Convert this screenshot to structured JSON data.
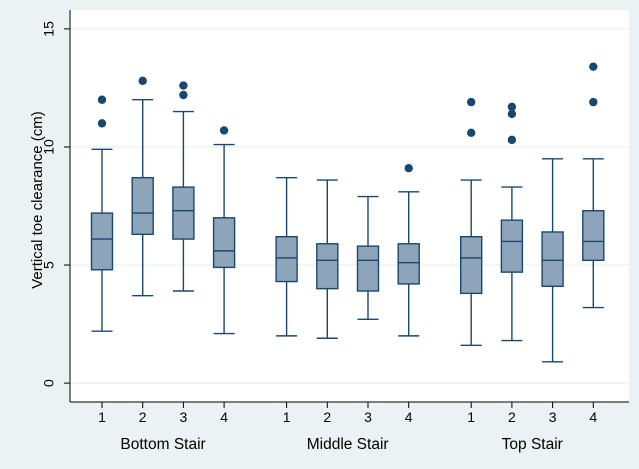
{
  "chart_data": {
    "type": "box",
    "title": "",
    "ylabel": "Vertical toe clearance (cm)",
    "xlabel": "",
    "ylim": [
      -0.8,
      15.8
    ],
    "yticks": [
      0,
      5,
      10,
      15
    ],
    "grid": true,
    "groups": [
      {
        "label": "Bottom Stair",
        "boxes": [
          {
            "label": "1",
            "whisker_low": 2.2,
            "q1": 4.8,
            "median": 6.1,
            "q3": 7.2,
            "whisker_high": 9.9,
            "outliers": [
              11.0,
              12.0
            ]
          },
          {
            "label": "2",
            "whisker_low": 3.7,
            "q1": 6.3,
            "median": 7.2,
            "q3": 8.7,
            "whisker_high": 12.0,
            "outliers": [
              12.8
            ]
          },
          {
            "label": "3",
            "whisker_low": 3.9,
            "q1": 6.1,
            "median": 7.3,
            "q3": 8.3,
            "whisker_high": 11.5,
            "outliers": [
              12.2,
              12.6
            ]
          },
          {
            "label": "4",
            "whisker_low": 2.1,
            "q1": 4.9,
            "median": 5.6,
            "q3": 7.0,
            "whisker_high": 10.1,
            "outliers": [
              10.7
            ]
          }
        ]
      },
      {
        "label": "Middle Stair",
        "boxes": [
          {
            "label": "1",
            "whisker_low": 2.0,
            "q1": 4.3,
            "median": 5.3,
            "q3": 6.2,
            "whisker_high": 8.7,
            "outliers": []
          },
          {
            "label": "2",
            "whisker_low": 1.9,
            "q1": 4.0,
            "median": 5.2,
            "q3": 5.9,
            "whisker_high": 8.6,
            "outliers": []
          },
          {
            "label": "3",
            "whisker_low": 2.7,
            "q1": 3.9,
            "median": 5.2,
            "q3": 5.8,
            "whisker_high": 7.9,
            "outliers": []
          },
          {
            "label": "4",
            "whisker_low": 2.0,
            "q1": 4.2,
            "median": 5.1,
            "q3": 5.9,
            "whisker_high": 8.1,
            "outliers": [
              9.1
            ]
          }
        ]
      },
      {
        "label": "Top Stair",
        "boxes": [
          {
            "label": "1",
            "whisker_low": 1.6,
            "q1": 3.8,
            "median": 5.3,
            "q3": 6.2,
            "whisker_high": 8.6,
            "outliers": [
              10.6,
              11.9
            ]
          },
          {
            "label": "2",
            "whisker_low": 1.8,
            "q1": 4.7,
            "median": 6.0,
            "q3": 6.9,
            "whisker_high": 8.3,
            "outliers": [
              10.3,
              11.4,
              11.7
            ]
          },
          {
            "label": "3",
            "whisker_low": 0.9,
            "q1": 4.1,
            "median": 5.2,
            "q3": 6.4,
            "whisker_high": 9.5,
            "outliers": []
          },
          {
            "label": "4",
            "whisker_low": 3.2,
            "q1": 5.2,
            "median": 6.0,
            "q3": 7.3,
            "whisker_high": 9.5,
            "outliers": [
              11.9,
              13.4
            ]
          }
        ]
      }
    ],
    "colors": {
      "outer_background": "#eaf2f3",
      "plot_background": "#ffffff",
      "gridline": "#e6ecee",
      "box_fill": "#8ea4bb",
      "box_stroke": "#1a476f",
      "outlier": "#1a476f",
      "axis": "#000000"
    }
  }
}
